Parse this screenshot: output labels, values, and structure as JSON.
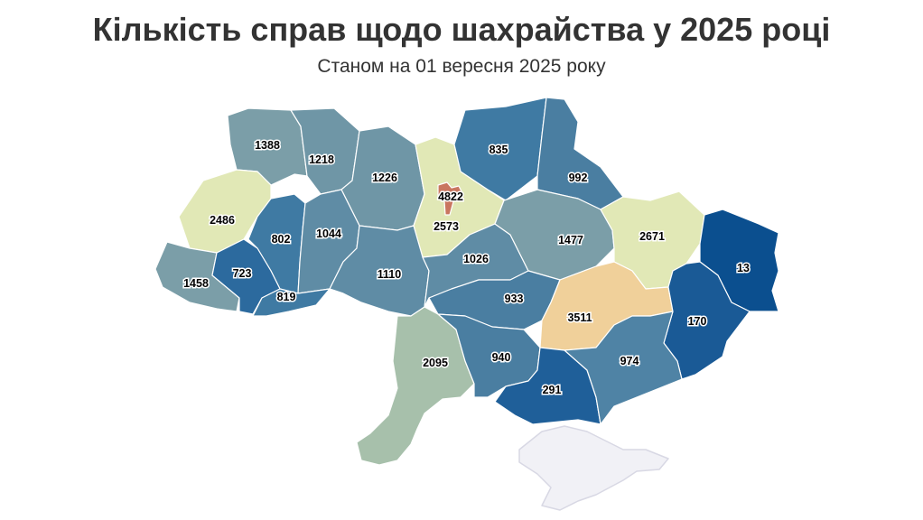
{
  "title": "Кількість справ щодо шахрайства у 2025 році",
  "subtitle": "Станом на 01 вересня 2025 року",
  "colors": {
    "lowest": "#0b4f8f",
    "low": "#2c6a9e",
    "mid_dark": "#4a7ea1",
    "mid": "#5f8ca5",
    "mid_light": "#7b9ea8",
    "teal_light": "#a7c0ab",
    "high": "#e1e8b6",
    "higher": "#f0d09a",
    "highest": "#c9765f",
    "occupied": "#f1f1f6"
  },
  "regions": [
    {
      "id": "volyn",
      "value": "1388",
      "color": "#7b9ea8"
    },
    {
      "id": "rivne",
      "value": "1218",
      "color": "#6f96a6"
    },
    {
      "id": "zhytomyr",
      "value": "1226",
      "color": "#6f96a6"
    },
    {
      "id": "kyiv-city",
      "value": "4822",
      "color": "#c9765f"
    },
    {
      "id": "kyiv-oblast",
      "value": "2573",
      "color": "#e1e8b6"
    },
    {
      "id": "chernihiv",
      "value": "835",
      "color": "#3f7aa3"
    },
    {
      "id": "sumy",
      "value": "992",
      "color": "#4a7ea1"
    },
    {
      "id": "lviv",
      "value": "2486",
      "color": "#e1e8b6"
    },
    {
      "id": "ternopil",
      "value": "802",
      "color": "#3f7aa3"
    },
    {
      "id": "khmelnytskyi",
      "value": "1044",
      "color": "#5f8ca5"
    },
    {
      "id": "zakarpattia",
      "value": "1458",
      "color": "#7b9ea8"
    },
    {
      "id": "ivano-frankivsk",
      "value": "723",
      "color": "#2c6a9e"
    },
    {
      "id": "chernivtsi",
      "value": "819",
      "color": "#3f7aa3"
    },
    {
      "id": "vinnytsia",
      "value": "1110",
      "color": "#5f8ca5"
    },
    {
      "id": "cherkasy",
      "value": "1026",
      "color": "#5f8ca5"
    },
    {
      "id": "poltava",
      "value": "1477",
      "color": "#7b9ea8"
    },
    {
      "id": "kharkiv",
      "value": "2671",
      "color": "#e1e8b6"
    },
    {
      "id": "luhansk",
      "value": "13",
      "color": "#0b4f8f"
    },
    {
      "id": "kirovohrad",
      "value": "933",
      "color": "#4a7ea1"
    },
    {
      "id": "dnipropetrovsk",
      "value": "3511",
      "color": "#f0d09a"
    },
    {
      "id": "donetsk",
      "value": "170",
      "color": "#1a5a96"
    },
    {
      "id": "odesa",
      "value": "2095",
      "color": "#a7c0ab"
    },
    {
      "id": "mykolaiv",
      "value": "940",
      "color": "#4a7ea1"
    },
    {
      "id": "kherson",
      "value": "291",
      "color": "#1f5f99"
    },
    {
      "id": "zaporizhzhia",
      "value": "974",
      "color": "#4f83a5"
    },
    {
      "id": "crimea",
      "value": "",
      "color": "#f1f1f6"
    }
  ]
}
